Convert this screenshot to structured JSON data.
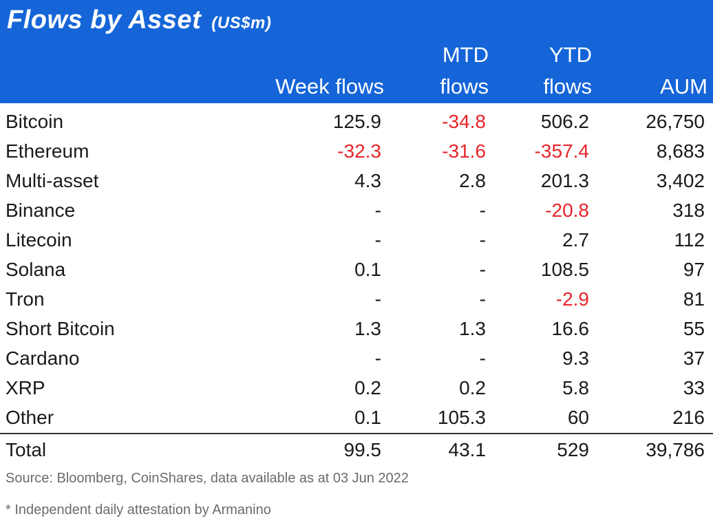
{
  "header": {
    "title": "Flows by Asset",
    "unit": "(US$m)",
    "col1_line2": "Week flows",
    "col2_line1": "MTD",
    "col2_line2": "flows",
    "col3_line1": "YTD",
    "col3_line2": "flows",
    "col4_line2": "AUM"
  },
  "colors": {
    "header_bg": "#1565d8",
    "negative": "#e8232a"
  },
  "footer": {
    "source": "Source: Bloomberg, CoinShares, data available as at 03 Jun 2022",
    "footnote": "* Independent daily attestation by Armanino"
  },
  "chart_data": {
    "type": "table",
    "title": "Flows by Asset",
    "subtitle": "(US$m)",
    "columns": [
      "Week flows",
      "MTD flows",
      "YTD flows",
      "AUM"
    ],
    "rows": [
      {
        "name": "Bitcoin",
        "values": [
          "125.9",
          "-34.8",
          "506.2",
          "26,750"
        ]
      },
      {
        "name": "Ethereum",
        "values": [
          "-32.3",
          "-31.6",
          "-357.4",
          "8,683"
        ]
      },
      {
        "name": "Multi-asset",
        "values": [
          "4.3",
          "2.8",
          "201.3",
          "3,402"
        ]
      },
      {
        "name": "Binance",
        "values": [
          "-",
          "-",
          "-20.8",
          "318"
        ]
      },
      {
        "name": "Litecoin",
        "values": [
          "-",
          "-",
          "2.7",
          "112"
        ]
      },
      {
        "name": "Solana",
        "values": [
          "0.1",
          "-",
          "108.5",
          "97"
        ]
      },
      {
        "name": "Tron",
        "values": [
          "-",
          "-",
          "-2.9",
          "81"
        ]
      },
      {
        "name": "Short Bitcoin",
        "values": [
          "1.3",
          "1.3",
          "16.6",
          "55"
        ]
      },
      {
        "name": "Cardano",
        "values": [
          "-",
          "-",
          "9.3",
          "37"
        ]
      },
      {
        "name": "XRP",
        "values": [
          "0.2",
          "0.2",
          "5.8",
          "33"
        ]
      },
      {
        "name": "Other",
        "values": [
          "0.1",
          "105.3",
          "60",
          "216"
        ]
      }
    ],
    "total": {
      "name": "Total",
      "values": [
        "99.5",
        "43.1",
        "529",
        "39,786"
      ]
    }
  }
}
